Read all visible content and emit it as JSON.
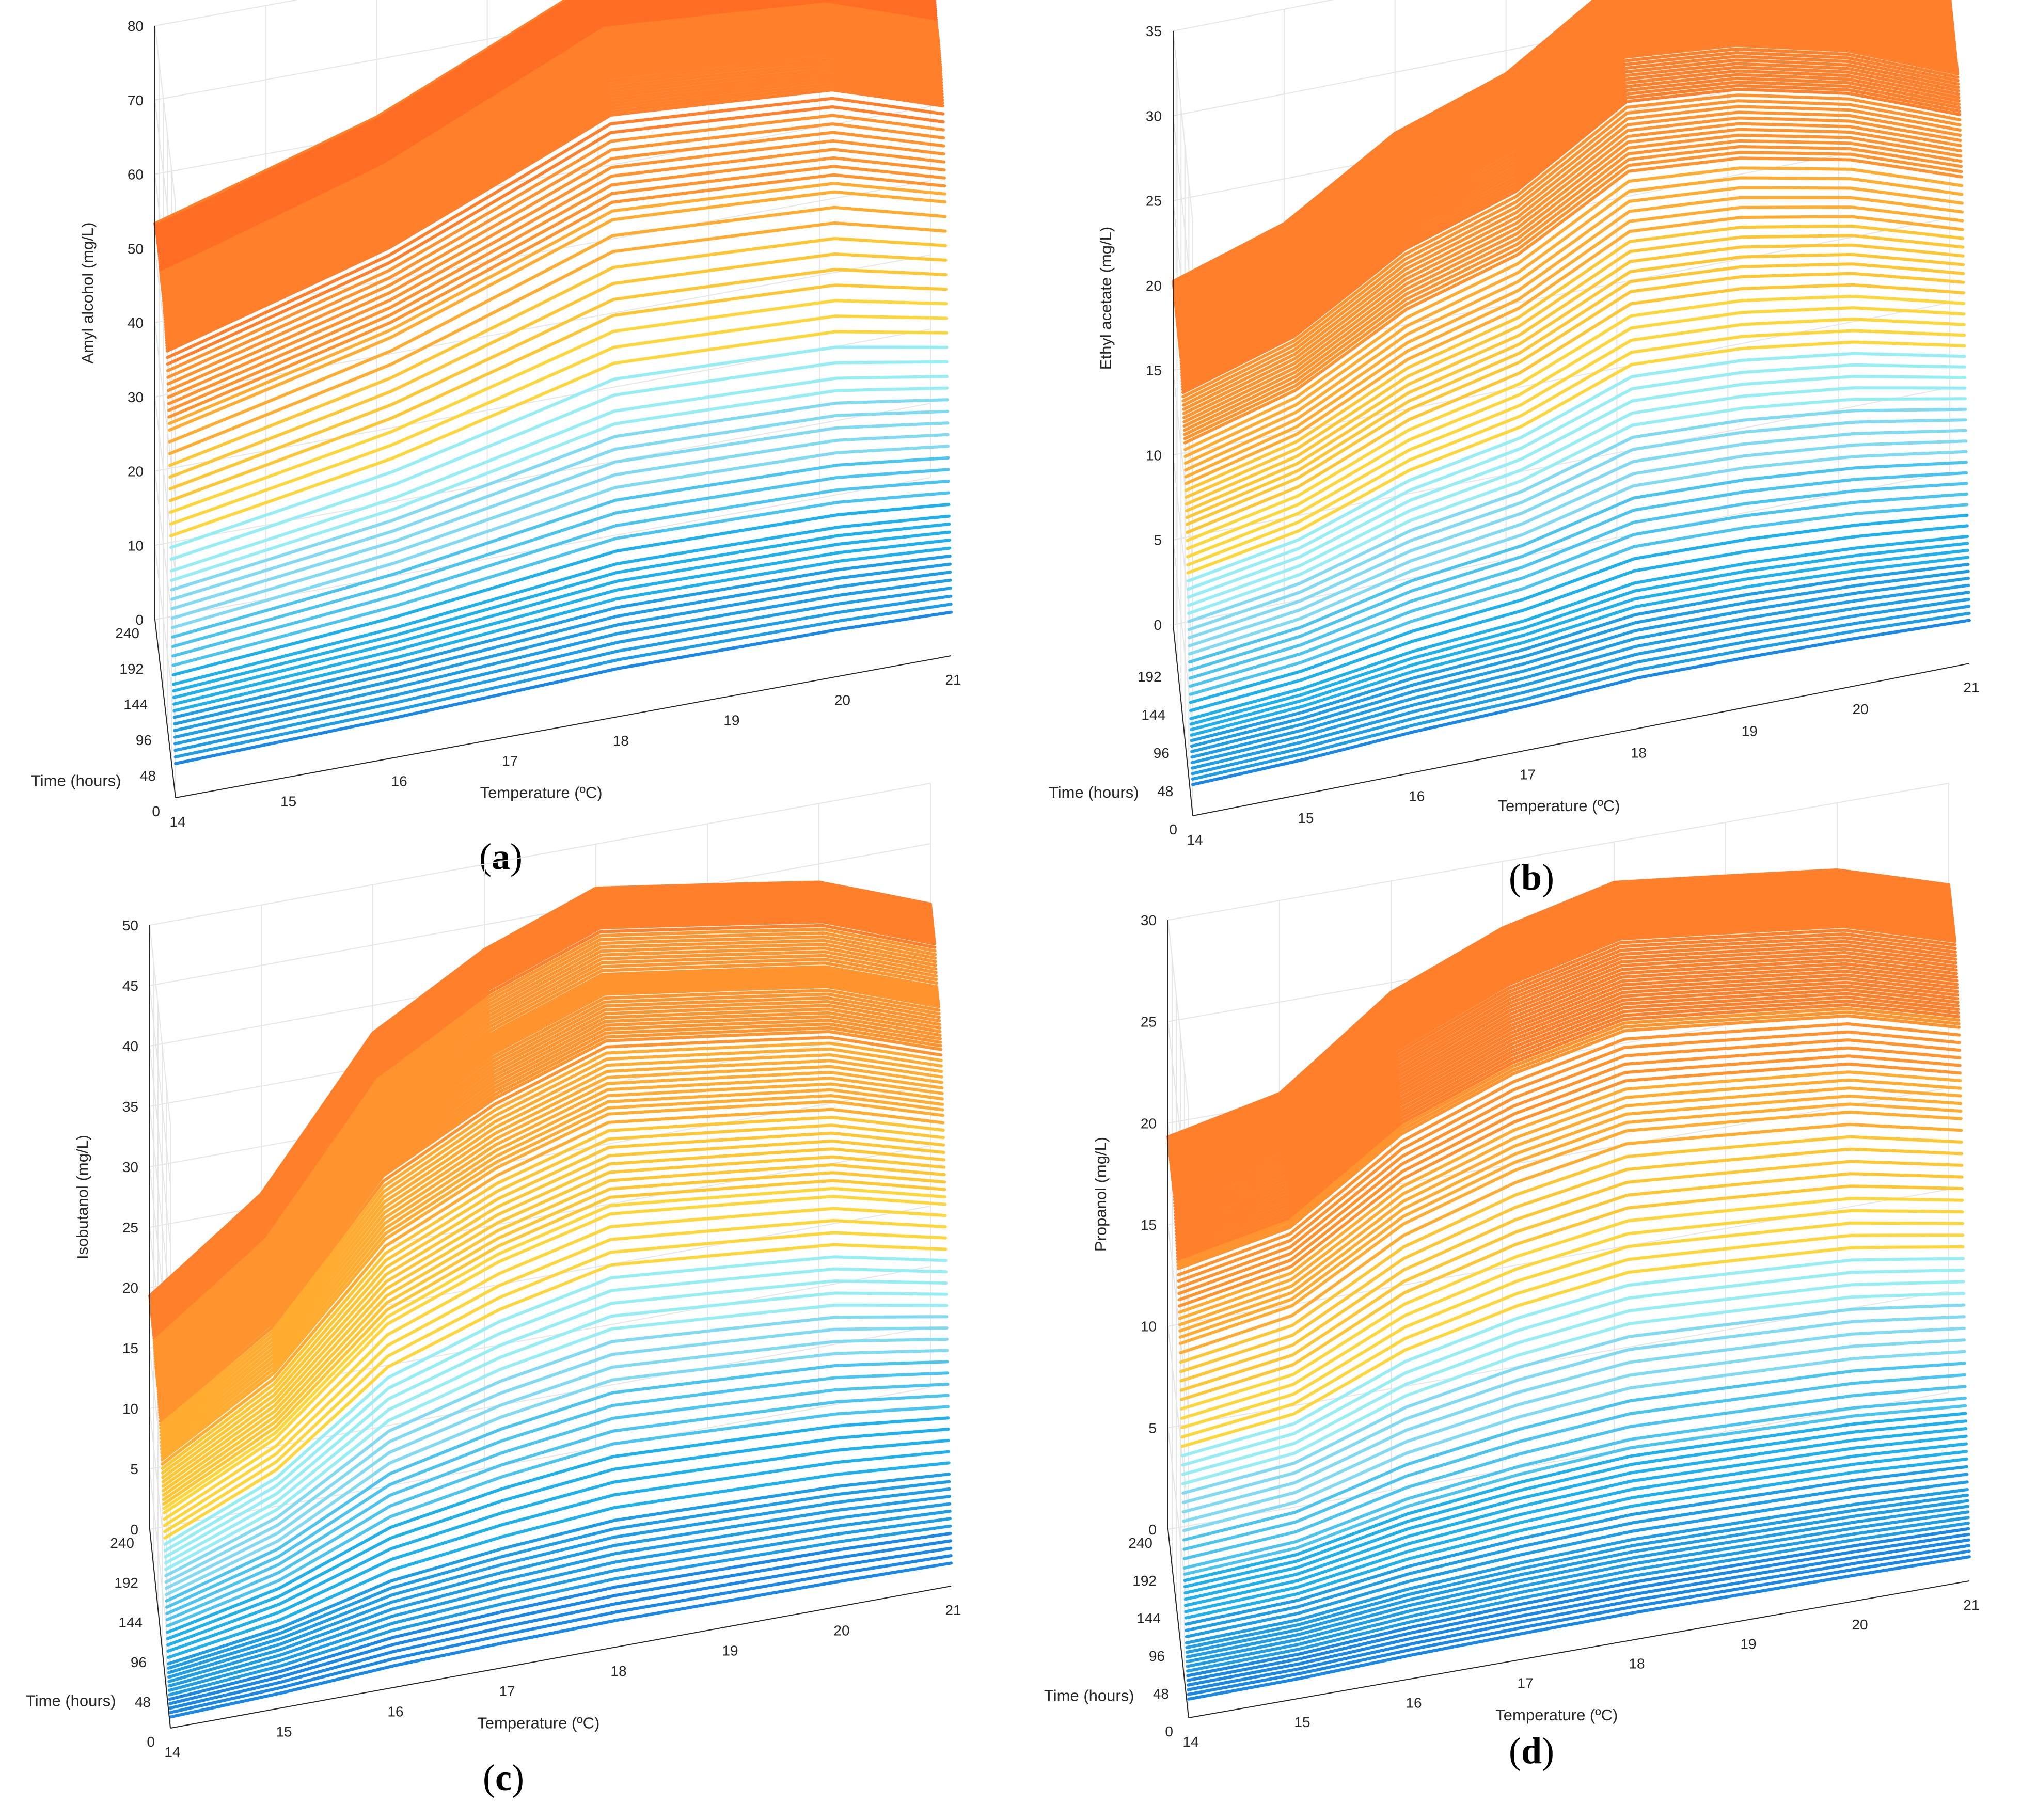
{
  "colors": {
    "axis": "#262626",
    "grid": "#e6e6e6",
    "warm": [
      "#ff5a20",
      "#ff6c24",
      "#ff7f2a",
      "#ff932d",
      "#ffac30",
      "#ffc633",
      "#ffd63a"
    ],
    "cool": [
      "#96eef5",
      "#7fdaf2",
      "#4cc4f0",
      "#1fb1ec",
      "#1f9ee8",
      "#1a88e6"
    ]
  },
  "captions": [
    "a",
    "b",
    "c",
    "d"
  ],
  "chart_data": [
    {
      "type": "surface",
      "title": "(a)",
      "xlabel": "Temperature (ºC)",
      "ylabel": "Time (hours)",
      "zlabel": "Amyl alcohol (mg/L)",
      "xticks": [
        "14",
        "15",
        "16",
        "17",
        "18",
        "19",
        "20",
        "21"
      ],
      "yticks": [
        "0",
        "48",
        "96",
        "144",
        "192",
        "240"
      ],
      "zticks": [
        "0",
        "10",
        "20",
        "30",
        "40",
        "50",
        "60",
        "70",
        "80"
      ],
      "xlim": [
        14,
        21
      ],
      "ylim": [
        0,
        240
      ],
      "zlim": [
        0,
        80
      ],
      "time_profile": {
        "t": [
          0,
          24,
          48,
          72,
          96,
          120,
          144,
          168,
          192,
          216,
          240
        ],
        "z_at_14C": [
          5,
          14,
          28,
          46,
          55,
          57,
          58,
          58,
          59,
          59,
          58
        ]
      },
      "temp_profile": {
        "x": [
          14,
          15,
          16,
          17,
          18,
          19,
          20,
          21
        ],
        "z_max": [
          58,
          62,
          66,
          72,
          78,
          76,
          74,
          68
        ]
      }
    },
    {
      "type": "surface",
      "title": "(b)",
      "xlabel": "Temperature (ºC)",
      "ylabel": "Time (hours)",
      "zlabel": "Ethyl acetate (mg/L)",
      "xticks": [
        "14",
        "15",
        "16",
        "17",
        "18",
        "19",
        "20",
        "21"
      ],
      "yticks": [
        "0",
        "48",
        "96",
        "144",
        "192"
      ],
      "zticks": [
        "0",
        "5",
        "10",
        "15",
        "20",
        "25",
        "30",
        "35"
      ],
      "xlim": [
        14,
        21
      ],
      "ylim": [
        0,
        240
      ],
      "zlim": [
        0,
        35
      ],
      "time_profile": {
        "t": [
          0,
          24,
          48,
          72,
          96,
          120,
          144,
          168,
          192,
          216,
          240
        ],
        "z_at_14C": [
          2,
          5,
          10,
          15,
          19,
          21,
          22,
          22,
          22,
          22,
          22
        ]
      },
      "temp_profile": {
        "x": [
          14,
          15,
          16,
          17,
          18,
          19,
          20,
          21
        ],
        "z_max": [
          22,
          24,
          28,
          30,
          34,
          33,
          31,
          28
        ]
      }
    },
    {
      "type": "surface",
      "title": "(c)",
      "xlabel": "Temperature (ºC)",
      "ylabel": "Time (hours)",
      "zlabel": "Isobutanol (mg/L)",
      "xticks": [
        "14",
        "15",
        "16",
        "17",
        "18",
        "19",
        "20",
        "21"
      ],
      "yticks": [
        "0",
        "48",
        "96",
        "144",
        "192",
        "240"
      ],
      "zticks": [
        "0",
        "5",
        "10",
        "15",
        "20",
        "25",
        "30",
        "35",
        "40",
        "45",
        "50"
      ],
      "xlim": [
        14,
        21
      ],
      "ylim": [
        0,
        240
      ],
      "zlim": [
        0,
        50
      ],
      "time_profile": {
        "t": [
          0,
          24,
          48,
          72,
          96,
          120,
          144,
          168,
          192,
          216,
          240
        ],
        "z_at_14C": [
          1,
          4,
          9,
          14,
          17,
          19,
          20,
          20,
          21,
          21,
          21
        ]
      },
      "temp_profile": {
        "x": [
          14,
          15,
          16,
          17,
          18,
          19,
          20,
          21
        ],
        "z_max": [
          21,
          28,
          40,
          45,
          48,
          46,
          44,
          40
        ]
      }
    },
    {
      "type": "surface",
      "title": "(d)",
      "xlabel": "Temperature (ºC)",
      "ylabel": "Time (hours)",
      "zlabel": "Propanol (mg/L)",
      "xticks": [
        "14",
        "15",
        "16",
        "17",
        "18",
        "19",
        "20",
        "21"
      ],
      "yticks": [
        "0",
        "48",
        "96",
        "144",
        "192",
        "240"
      ],
      "zticks": [
        "0",
        "5",
        "10",
        "15",
        "20",
        "25",
        "30"
      ],
      "xlim": [
        14,
        21
      ],
      "ylim": [
        0,
        240
      ],
      "zlim": [
        0,
        30
      ],
      "time_profile": {
        "t": [
          0,
          24,
          48,
          72,
          96,
          120,
          144,
          168,
          192,
          216,
          240
        ],
        "z_at_14C": [
          1,
          3,
          6,
          11,
          16,
          19,
          20,
          21,
          21,
          21,
          21
        ]
      },
      "temp_profile": {
        "x": [
          14,
          15,
          16,
          17,
          18,
          19,
          20,
          21
        ],
        "z_max": [
          21,
          22,
          26,
          28,
          29,
          28,
          27,
          25
        ]
      }
    }
  ]
}
